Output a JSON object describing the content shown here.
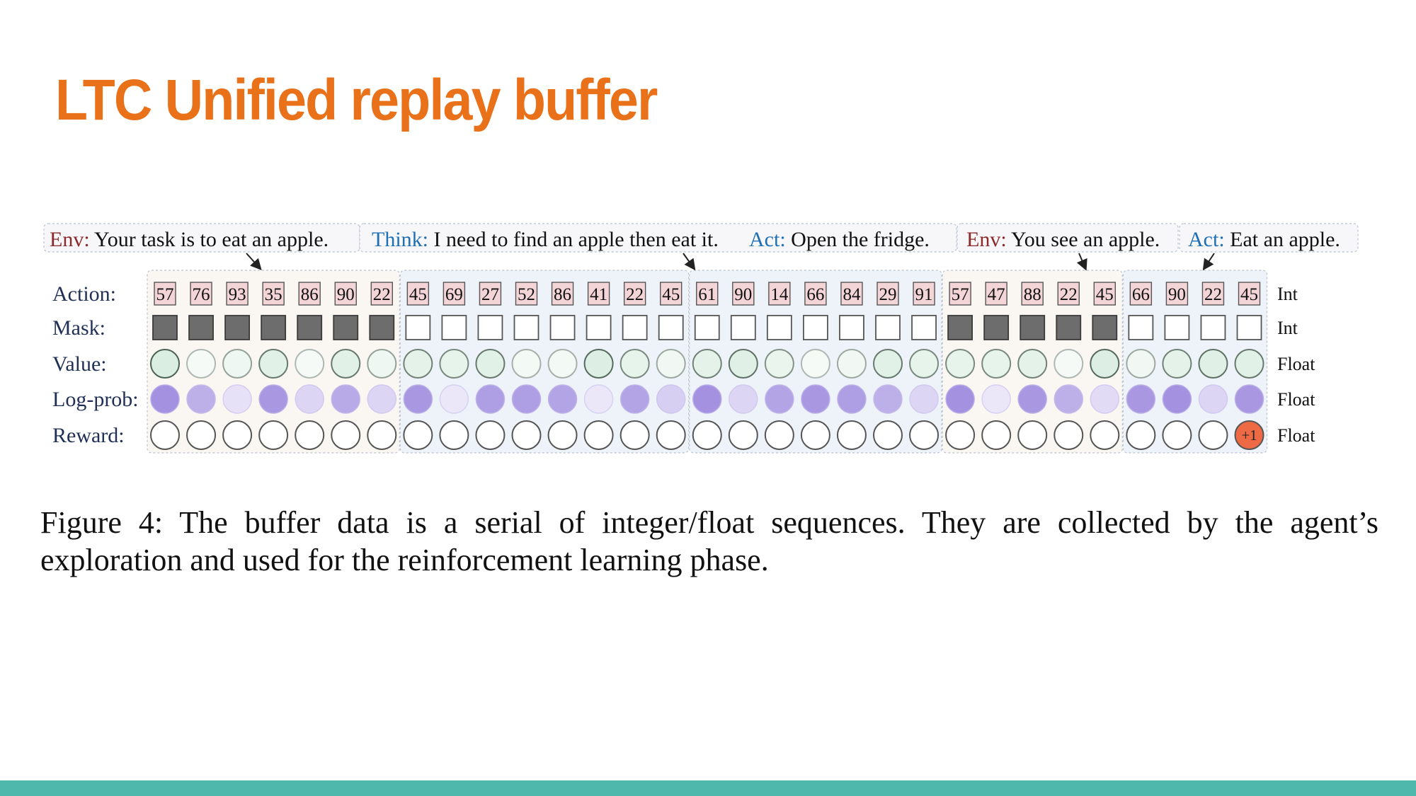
{
  "slide": {
    "title": "LTC Unified replay buffer",
    "caption": "Figure 4: The buffer data is a serial of integer/float sequences. They are collected by the agent’s exploration and used for the reinforcement learning phase."
  },
  "colors": {
    "title": "#e8711a",
    "env_label": "#8b2a2a",
    "model_label": "#1f6fb5",
    "bottom_bar": "#4fb8ac",
    "token_fill": "#f3d5d8",
    "mask_on": "#6d6d6d",
    "value_base": "#cfe8d8",
    "logprob_base": "#9a86dc",
    "reward_highlight": "#ee6a45"
  },
  "diagram": {
    "segments": [
      {
        "label": "Env:",
        "text": "Your task is to eat an apple.",
        "kind": "env",
        "tokens": 7
      },
      {
        "label": "Think:",
        "text": "I need to find an apple then eat it.",
        "kind": "model",
        "tokens": 8
      },
      {
        "label": "Act:",
        "text": "Open the fridge.",
        "kind": "model",
        "tokens": 7
      },
      {
        "label": "Env:",
        "text": "You see an apple.",
        "kind": "env",
        "tokens": 5
      },
      {
        "label": "Act:",
        "text": "Eat an apple.",
        "kind": "model",
        "tokens": 4
      }
    ],
    "rows": [
      {
        "label": "Action:",
        "type": "Int"
      },
      {
        "label": "Mask:",
        "type": "Int"
      },
      {
        "label": "Value:",
        "type": "Float"
      },
      {
        "label": "Log-prob:",
        "type": "Float"
      },
      {
        "label": "Reward:",
        "type": "Float"
      }
    ],
    "action_tokens": [
      57,
      76,
      93,
      35,
      86,
      90,
      22,
      45,
      69,
      27,
      52,
      86,
      41,
      22,
      45,
      61,
      90,
      14,
      66,
      84,
      29,
      91,
      57,
      47,
      88,
      22,
      45,
      66,
      90,
      22,
      45
    ],
    "mask": [
      1,
      1,
      1,
      1,
      1,
      1,
      1,
      0,
      0,
      0,
      0,
      0,
      0,
      0,
      0,
      0,
      0,
      0,
      0,
      0,
      0,
      0,
      1,
      1,
      1,
      1,
      1,
      0,
      0,
      0,
      0
    ],
    "value_intensity": [
      0.75,
      0.2,
      0.35,
      0.6,
      0.2,
      0.6,
      0.35,
      0.55,
      0.5,
      0.6,
      0.25,
      0.25,
      0.7,
      0.5,
      0.3,
      0.55,
      0.65,
      0.45,
      0.2,
      0.3,
      0.6,
      0.5,
      0.5,
      0.5,
      0.55,
      0.2,
      0.7,
      0.3,
      0.55,
      0.65,
      0.6
    ],
    "logprob_intensity": [
      0.9,
      0.65,
      0.25,
      0.85,
      0.35,
      0.7,
      0.35,
      0.85,
      0.2,
      0.8,
      0.8,
      0.75,
      0.2,
      0.75,
      0.4,
      0.9,
      0.35,
      0.75,
      0.85,
      0.8,
      0.65,
      0.35,
      0.9,
      0.2,
      0.85,
      0.65,
      0.3,
      0.85,
      0.9,
      0.35,
      0.85
    ],
    "reward_values": [
      "",
      "",
      "",
      "",
      "",
      "",
      "",
      "",
      "",
      "",
      "",
      "",
      "",
      "",
      "",
      "",
      "",
      "",
      "",
      "",
      "",
      "",
      "",
      "",
      "",
      "",
      "",
      "",
      "",
      "",
      "+1"
    ]
  }
}
